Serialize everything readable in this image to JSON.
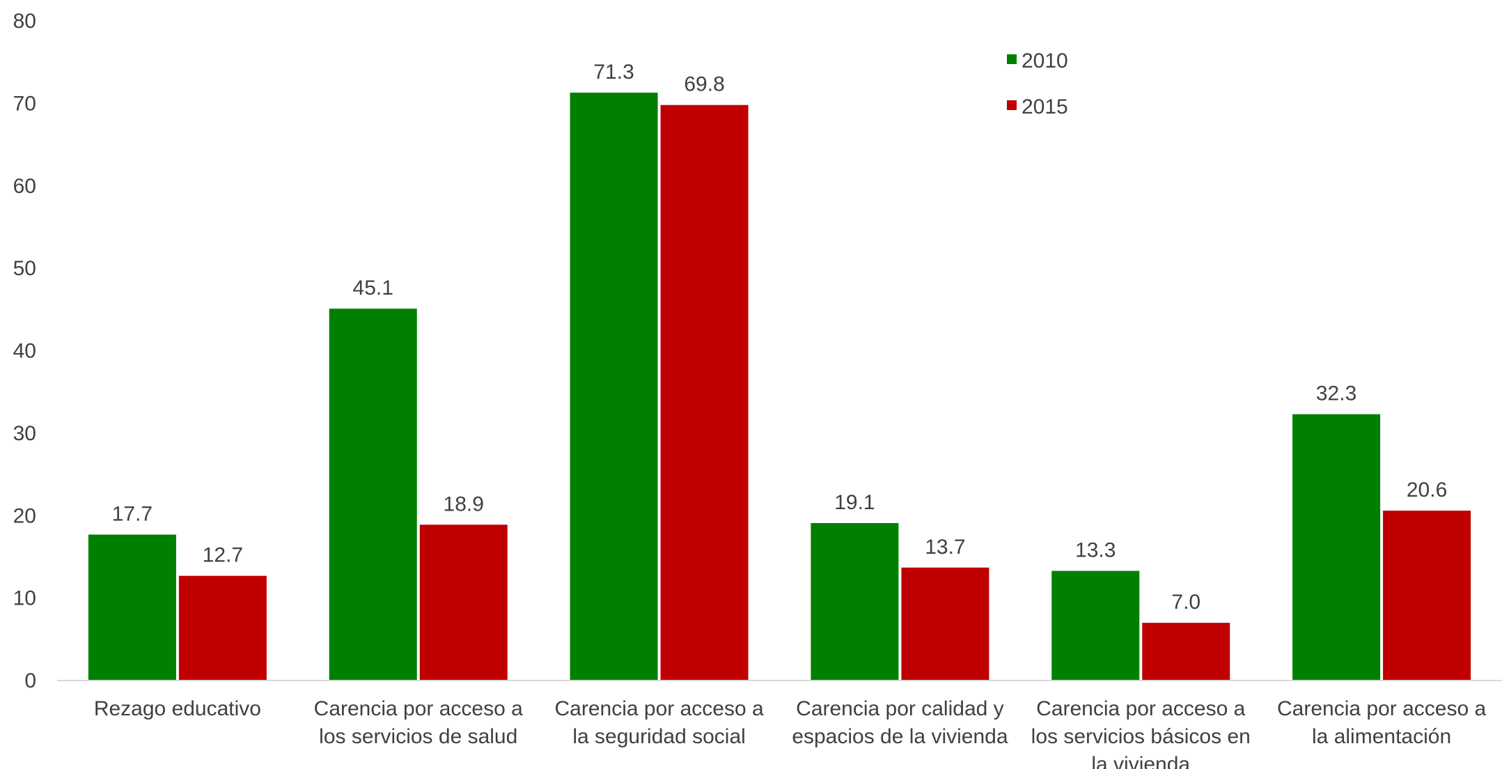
{
  "chart_data": {
    "type": "bar",
    "categories": [
      [
        "Rezago educativo"
      ],
      [
        "Carencia por acceso a",
        "los servicios de salud"
      ],
      [
        "Carencia por acceso a",
        "la seguridad social"
      ],
      [
        "Carencia por calidad y",
        "espacios de la vivienda"
      ],
      [
        "Carencia por acceso a",
        "los servicios básicos en",
        "la vivienda"
      ],
      [
        "Carencia por acceso a",
        "la alimentación"
      ]
    ],
    "series": [
      {
        "name": "2010",
        "color": "#008000",
        "values": [
          17.7,
          45.1,
          71.3,
          19.1,
          13.3,
          32.3
        ]
      },
      {
        "name": "2015",
        "color": "#C00000",
        "values": [
          12.7,
          18.9,
          69.8,
          13.7,
          7.0,
          20.6
        ]
      }
    ],
    "ylim": [
      0,
      80
    ],
    "yticks": [
      0,
      10,
      20,
      30,
      40,
      50,
      60,
      70,
      80
    ],
    "grid": false,
    "legend": "top-right",
    "value_decimals": 1
  }
}
